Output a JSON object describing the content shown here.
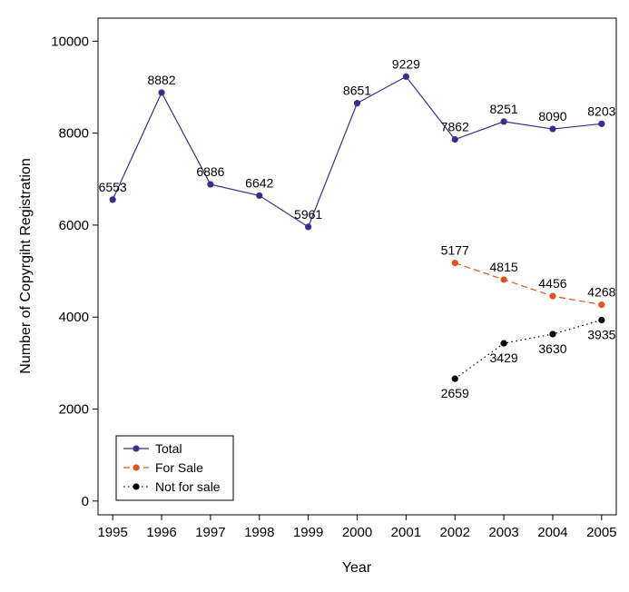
{
  "chart_data": {
    "type": "line",
    "title": "",
    "xlabel": "Year",
    "ylabel": "Number of Copyrgiht Registration",
    "x": [
      1995,
      1996,
      1997,
      1998,
      1999,
      2000,
      2001,
      2002,
      2003,
      2004,
      2005
    ],
    "xlim": [
      1994.7,
      2005.3
    ],
    "ylim": [
      -300,
      10500
    ],
    "yticks": [
      0,
      2000,
      4000,
      6000,
      8000,
      10000
    ],
    "grid": false,
    "legend_position": "bottom-left",
    "series": [
      {
        "name": "Total",
        "color": "#3a2d8c",
        "line_style": "solid",
        "x": [
          1995,
          1996,
          1997,
          1998,
          1999,
          2000,
          2001,
          2002,
          2003,
          2004,
          2005
        ],
        "values": [
          6553,
          8882,
          6886,
          6642,
          5961,
          8651,
          9229,
          7862,
          8251,
          8090,
          8203
        ],
        "labels": [
          "6553",
          "8882",
          "6886",
          "6642",
          "5961",
          "8651",
          "9229",
          "7862",
          "8251",
          "8090",
          "8203"
        ],
        "label_position": "above"
      },
      {
        "name": "For Sale",
        "color": "#e0531e",
        "line_style": "dashed",
        "x": [
          2002,
          2003,
          2004,
          2005
        ],
        "values": [
          5177,
          4815,
          4456,
          4268
        ],
        "labels": [
          "5177",
          "4815",
          "4456",
          "4268"
        ],
        "label_position": "above"
      },
      {
        "name": "Not for sale",
        "color": "#000000",
        "line_style": "dotted",
        "x": [
          2002,
          2003,
          2004,
          2005
        ],
        "values": [
          2659,
          3429,
          3630,
          3935
        ],
        "labels": [
          "2659",
          "3429",
          "3630",
          "3935"
        ],
        "label_position": "below"
      }
    ]
  }
}
